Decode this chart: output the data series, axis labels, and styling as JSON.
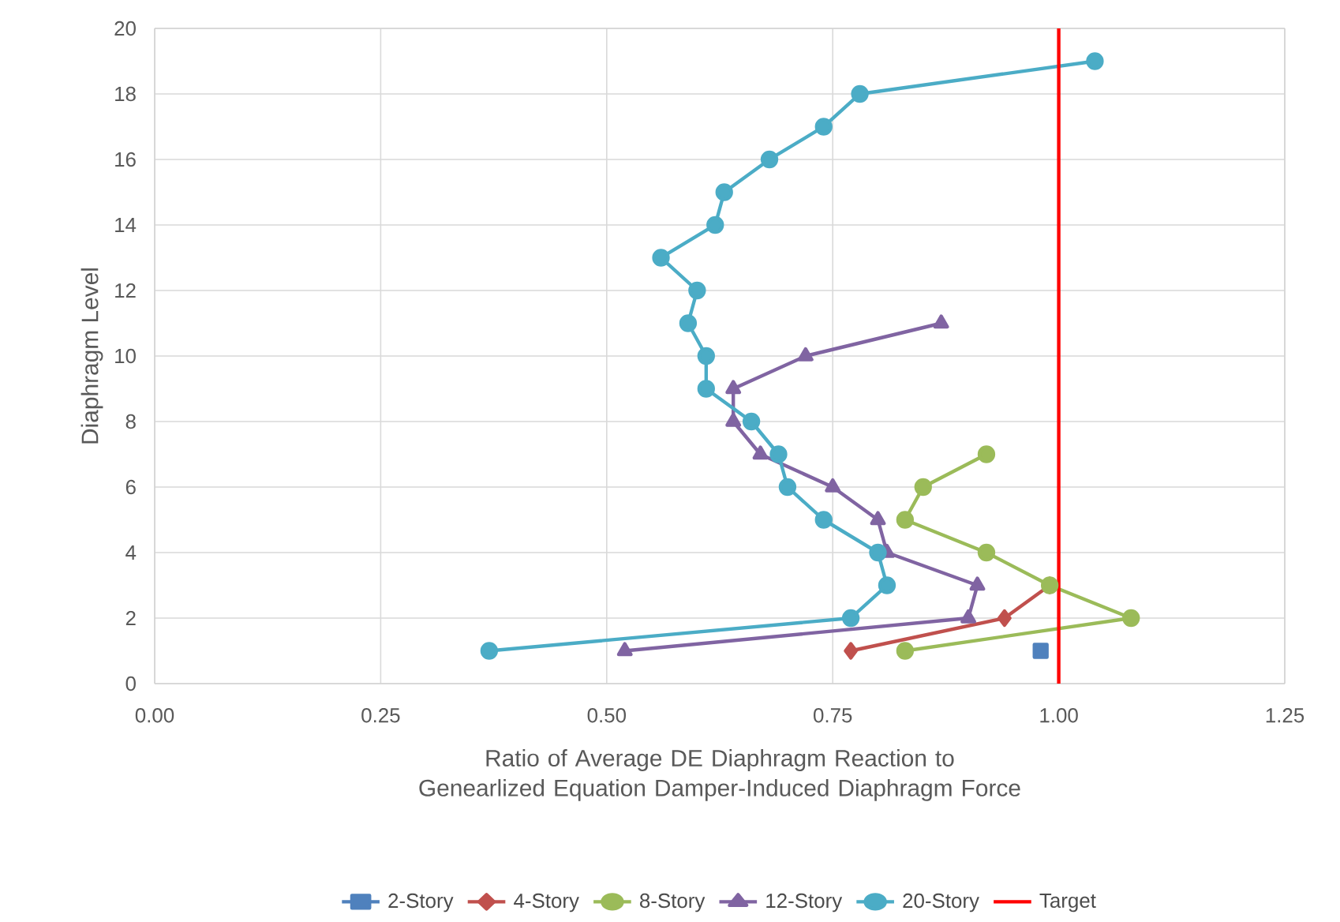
{
  "chart_data": {
    "type": "line",
    "xlabel": "Ratio of Average DE Diaphragm Reaction to Genearlized Equation Damper-Induced Diaphragm Force",
    "ylabel": "Diaphragm Level",
    "xlim": [
      0,
      1.25
    ],
    "xticks": [
      {
        "value": 0,
        "label": "0.00"
      },
      {
        "value": 0.25,
        "label": "0.25"
      },
      {
        "value": 0.5,
        "label": "0.50"
      },
      {
        "value": 0.75,
        "label": "0.75"
      },
      {
        "value": 1,
        "label": "1.00"
      },
      {
        "value": 1.25,
        "label": "1.25"
      }
    ],
    "ylim": [
      0,
      20
    ],
    "yticks": [
      0,
      2,
      4,
      6,
      8,
      10,
      12,
      14,
      16,
      18,
      20
    ],
    "grid": true,
    "legend": "bottom",
    "series": [
      {
        "name": "2-Story",
        "color": "#4f81bd",
        "marker": "square",
        "x": [
          0.98
        ],
        "values": [
          1
        ]
      },
      {
        "name": "4-Story",
        "color": "#c0504d",
        "marker": "diamond",
        "x": [
          0.77,
          0.94,
          0.99
        ],
        "values": [
          1,
          2,
          3
        ]
      },
      {
        "name": "8-Story",
        "color": "#9bbb59",
        "marker": "circle",
        "x": [
          0.83,
          1.08,
          0.99,
          0.92,
          0.83,
          0.85,
          0.92
        ],
        "values": [
          1,
          2,
          3,
          4,
          5,
          6,
          7
        ]
      },
      {
        "name": "12-Story",
        "color": "#8064a2",
        "marker": "triangle",
        "x": [
          0.52,
          0.9,
          0.91,
          0.81,
          0.8,
          0.75,
          0.67,
          0.64,
          0.64,
          0.72,
          0.87
        ],
        "values": [
          1,
          2,
          3,
          4,
          5,
          6,
          7,
          8,
          9,
          10,
          11
        ]
      },
      {
        "name": "20-Story",
        "color": "#4bacc6",
        "marker": "circle",
        "x": [
          0.37,
          0.77,
          0.81,
          0.8,
          0.74,
          0.7,
          0.69,
          0.66,
          0.61,
          0.61,
          0.59,
          0.6,
          0.56,
          0.62,
          0.63,
          0.68,
          0.74,
          0.78,
          1.04
        ],
        "values": [
          1,
          2,
          3,
          4,
          5,
          6,
          7,
          8,
          9,
          10,
          11,
          12,
          13,
          14,
          15,
          16,
          17,
          18,
          19
        ]
      },
      {
        "name": "Target",
        "color": "#ff0000",
        "marker": "none",
        "x": [
          1,
          1
        ],
        "values": [
          0,
          20
        ]
      }
    ]
  }
}
